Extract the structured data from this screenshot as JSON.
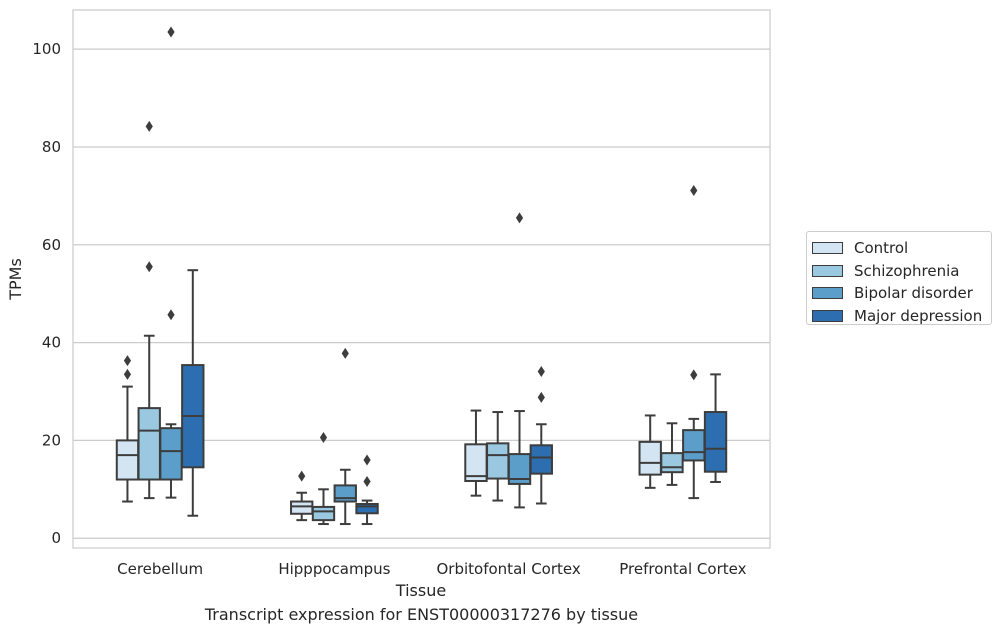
{
  "chart_data": {
    "type": "box",
    "title": "",
    "caption": "Transcript expression for ENST00000317276 by tissue",
    "xlabel": "Tissue",
    "ylabel": "TPMs",
    "ylim": [
      -2,
      108
    ],
    "yticks": [
      0,
      20,
      40,
      60,
      80,
      100
    ],
    "grid": true,
    "legend_position": "right",
    "categories": [
      "Cerebellum",
      "Hipppocampus",
      "Orbitofontal Cortex",
      "Prefrontal Cortex"
    ],
    "series": [
      {
        "name": "Control",
        "color": "#d3e4f3",
        "boxes": [
          {
            "whisker_low": 7.5,
            "q1": 12,
            "median": 17,
            "q3": 20,
            "whisker_high": 31,
            "outliers": [
              33.5,
              36.3
            ]
          },
          {
            "whisker_low": 3.7,
            "q1": 5,
            "median": 6.5,
            "q3": 7.5,
            "whisker_high": 9.3,
            "outliers": [
              12.7
            ]
          },
          {
            "whisker_low": 8.7,
            "q1": 11.7,
            "median": 12.7,
            "q3": 19.2,
            "whisker_high": 26.1,
            "outliers": []
          },
          {
            "whisker_low": 10.3,
            "q1": 13,
            "median": 15.4,
            "q3": 19.7,
            "whisker_high": 25.1,
            "outliers": []
          }
        ]
      },
      {
        "name": "Schizophrenia",
        "color": "#9ac8e0",
        "boxes": [
          {
            "whisker_low": 8.2,
            "q1": 12,
            "median": 22,
            "q3": 26.6,
            "whisker_high": 41.4,
            "outliers": [
              55.5,
              84.2
            ]
          },
          {
            "whisker_low": 2.9,
            "q1": 3.7,
            "median": 5.5,
            "q3": 6.4,
            "whisker_high": 10,
            "outliers": [
              20.6
            ]
          },
          {
            "whisker_low": 7.7,
            "q1": 12.2,
            "median": 17,
            "q3": 19.4,
            "whisker_high": 25.8,
            "outliers": []
          },
          {
            "whisker_low": 10.9,
            "q1": 13.5,
            "median": 14.5,
            "q3": 17.4,
            "whisker_high": 23.5,
            "outliers": []
          }
        ]
      },
      {
        "name": "Bipolar disorder",
        "color": "#5a9ec9",
        "boxes": [
          {
            "whisker_low": 8.3,
            "q1": 12,
            "median": 17.8,
            "q3": 22.5,
            "whisker_high": 23.3,
            "outliers": [
              45.7,
              103.5
            ]
          },
          {
            "whisker_low": 2.9,
            "q1": 7.5,
            "median": 8.2,
            "q3": 10.8,
            "whisker_high": 14,
            "outliers": [
              37.8
            ]
          },
          {
            "whisker_low": 6.3,
            "q1": 11.1,
            "median": 12.1,
            "q3": 17.2,
            "whisker_high": 26,
            "outliers": [
              65.5
            ]
          },
          {
            "whisker_low": 8.2,
            "q1": 15.9,
            "median": 17.6,
            "q3": 22.1,
            "whisker_high": 24.4,
            "outliers": [
              33.4,
              71.1
            ]
          }
        ]
      },
      {
        "name": "Major depression",
        "color": "#2d6eb0",
        "boxes": [
          {
            "whisker_low": 4.6,
            "q1": 14.5,
            "median": 25,
            "q3": 35.4,
            "whisker_high": 54.8,
            "outliers": []
          },
          {
            "whisker_low": 2.9,
            "q1": 5.1,
            "median": 6.5,
            "q3": 7,
            "whisker_high": 7.7,
            "outliers": [
              11.6,
              16
            ]
          },
          {
            "whisker_low": 7.1,
            "q1": 13.2,
            "median": 16.5,
            "q3": 19,
            "whisker_high": 23.3,
            "outliers": [
              28.8,
              34.1
            ]
          },
          {
            "whisker_low": 11.5,
            "q1": 13.6,
            "median": 18.3,
            "q3": 25.8,
            "whisker_high": 33.5,
            "outliers": []
          }
        ]
      }
    ]
  }
}
